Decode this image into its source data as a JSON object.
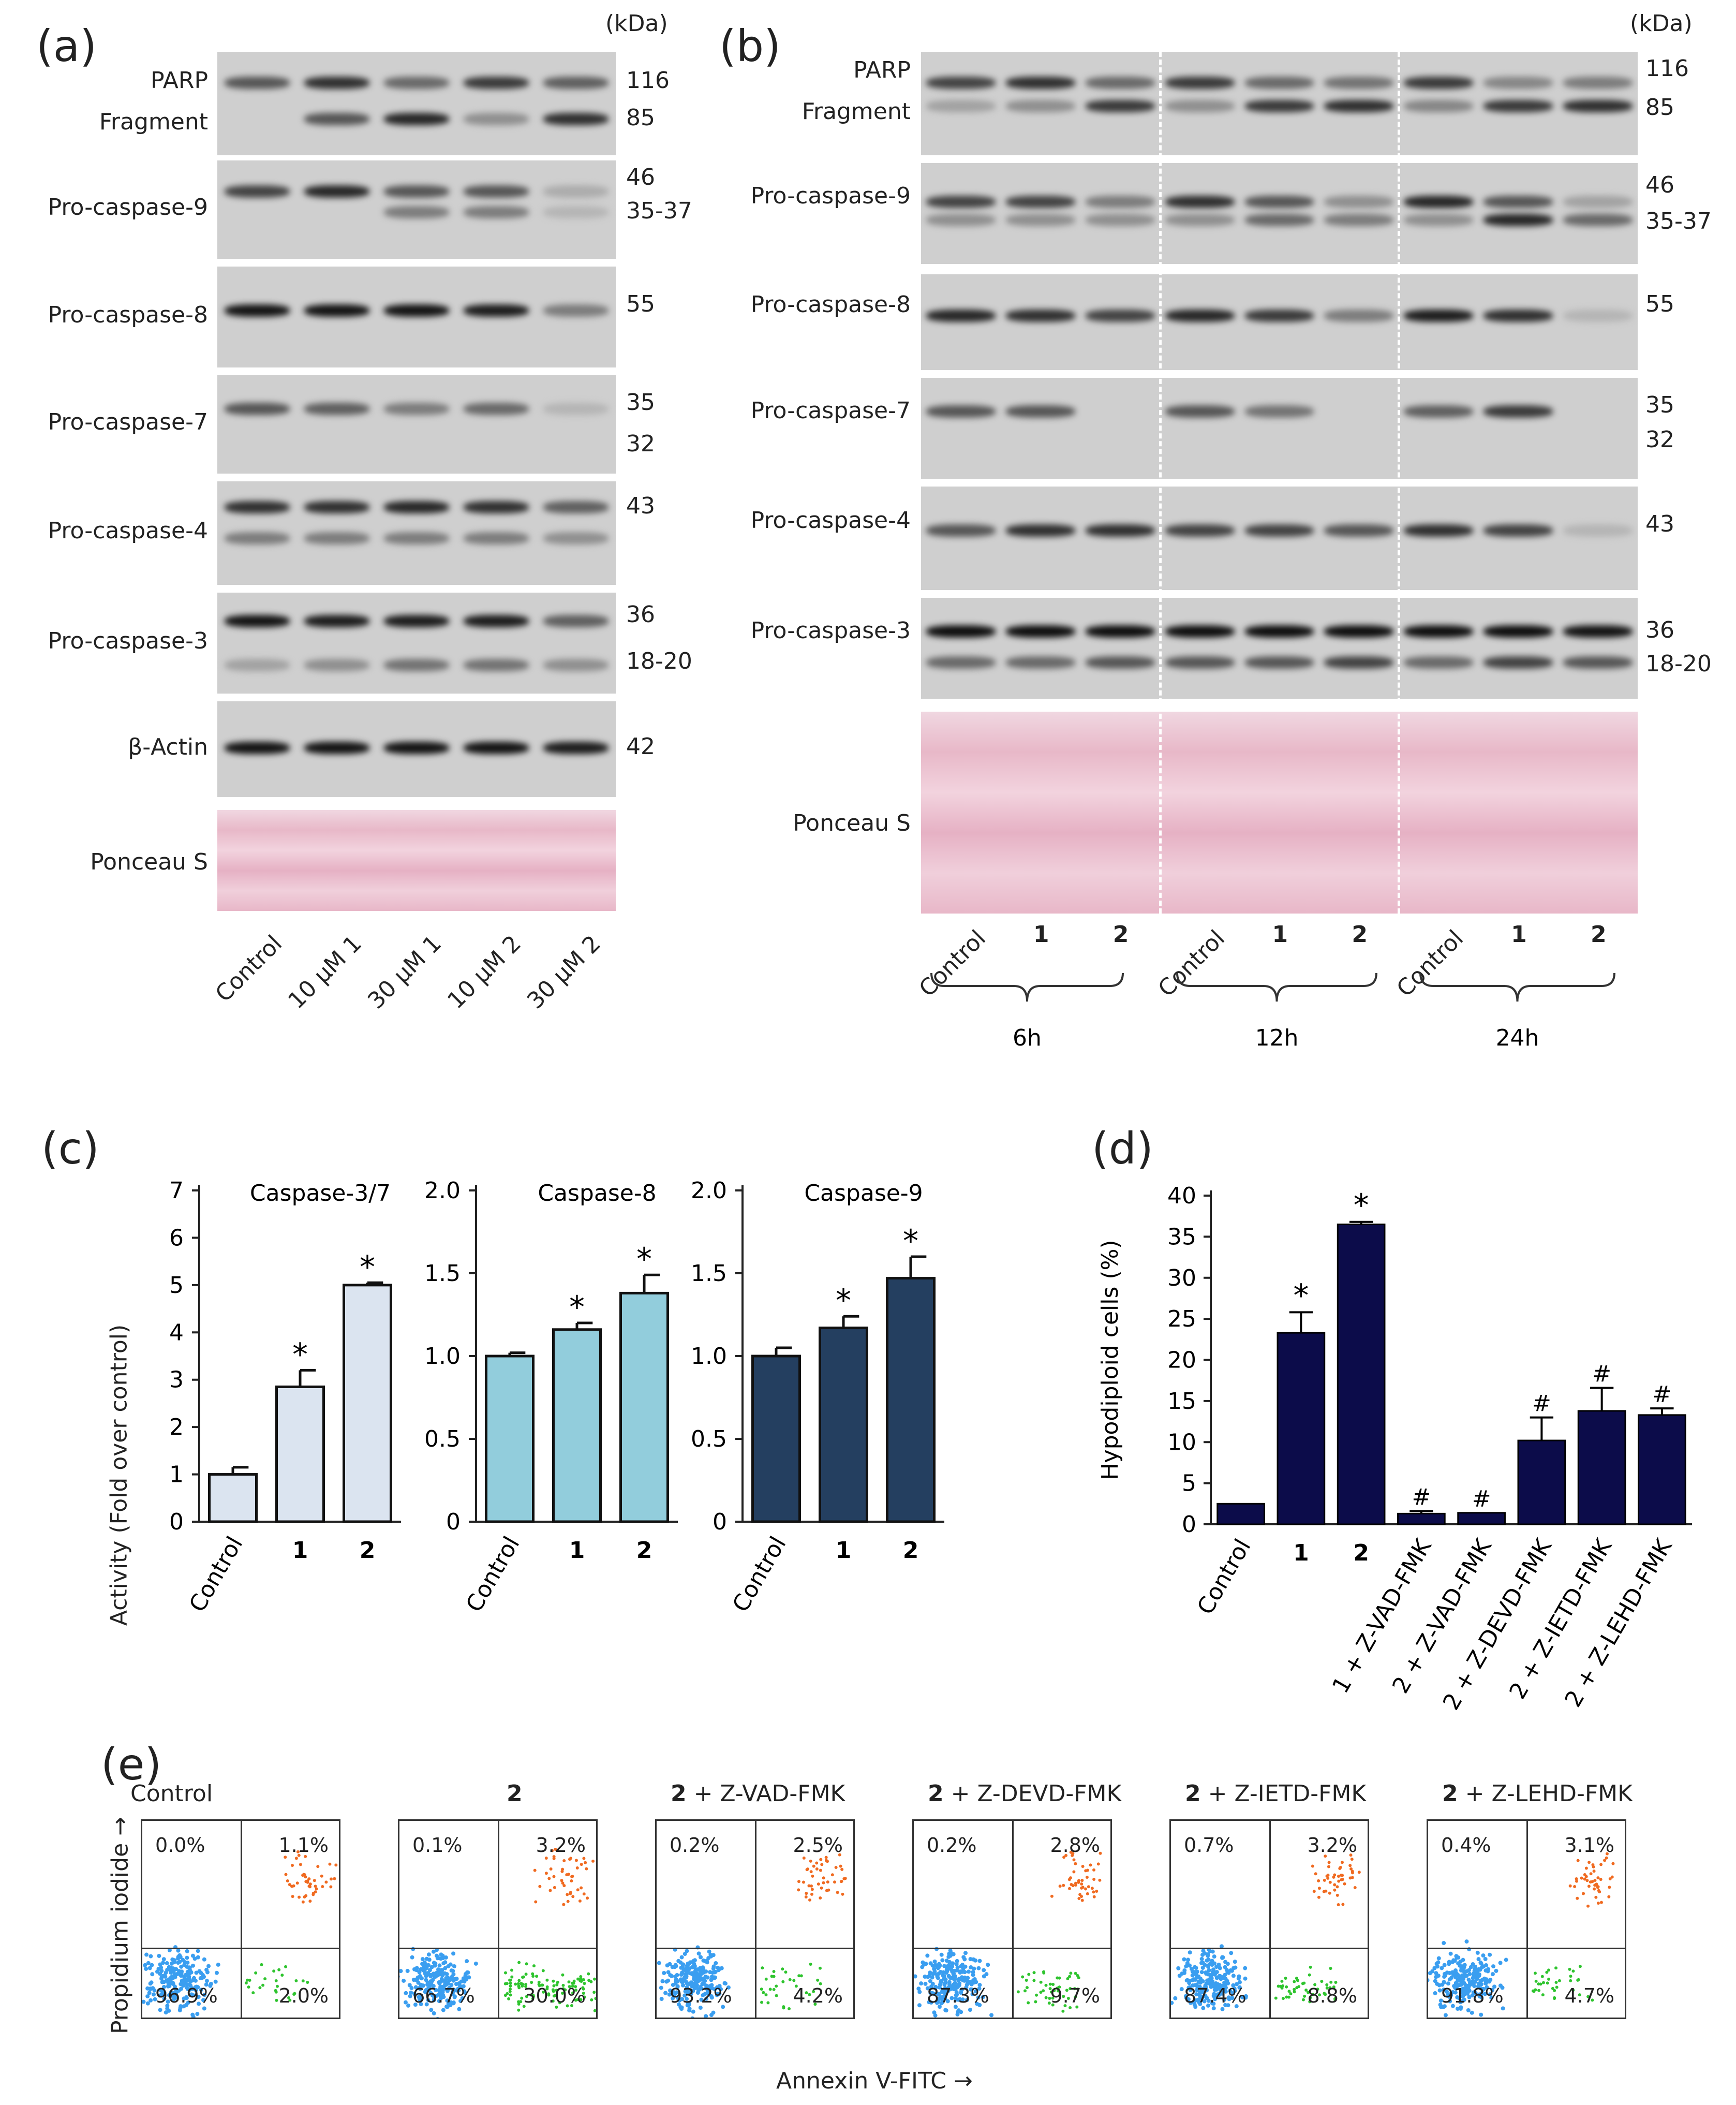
{
  "panel_a": {
    "label": "(a)",
    "kda": "(kDa)",
    "rows": [
      {
        "name": "PARP",
        "mw": "116"
      },
      {
        "name": "Fragment",
        "mw": "85"
      },
      {
        "name": "Pro-caspase-9",
        "mw": "46",
        "mw2": "35-37"
      },
      {
        "name": "Pro-caspase-8",
        "mw": "55"
      },
      {
        "name": "Pro-caspase-7",
        "mw": "35",
        "mw2": "32"
      },
      {
        "name": "Pro-caspase-4",
        "mw": "43"
      },
      {
        "name": "Pro-caspase-3",
        "mw": "36",
        "mw2": "18-20"
      },
      {
        "name": "β-Actin",
        "mw": "42"
      },
      {
        "name": "Ponceau S"
      }
    ],
    "lanes": [
      "Control",
      "10 μM 1",
      "30 μM 1",
      "10 μM 2",
      "30 μM 2"
    ]
  },
  "panel_b": {
    "label": "(b)",
    "kda": "(kDa)",
    "rows": [
      {
        "name": "PARP",
        "mw": "116"
      },
      {
        "name": "Fragment",
        "mw": "85"
      },
      {
        "name": "Pro-caspase-9",
        "mw": "46",
        "mw2": "35-37"
      },
      {
        "name": "Pro-caspase-8",
        "mw": "55"
      },
      {
        "name": "Pro-caspase-7",
        "mw": "35",
        "mw2": "32"
      },
      {
        "name": "Pro-caspase-4",
        "mw": "43"
      },
      {
        "name": "Pro-caspase-3",
        "mw": "36",
        "mw2": "18-20"
      },
      {
        "name": "Ponceau S"
      }
    ],
    "lanes": [
      "Control",
      "1",
      "2",
      "Control",
      "1",
      "2",
      "Control",
      "1",
      "2"
    ],
    "groups": [
      "6h",
      "12h",
      "24h"
    ]
  },
  "panel_c": {
    "label": "(c)",
    "ylabel": "Activity (Fold over control)"
  },
  "panel_d": {
    "label": "(d)"
  },
  "chart_data": [
    {
      "type": "bar",
      "title": "Caspase-3/7",
      "categories": [
        "Control",
        "1",
        "2"
      ],
      "values": [
        1.0,
        2.85,
        5.0
      ],
      "errors": [
        0.15,
        0.35,
        0.05
      ],
      "significance": [
        "",
        "*",
        "*"
      ],
      "ylabel": "Activity (Fold over control)",
      "ylim": [
        0,
        7
      ],
      "yticks": [
        "0",
        "1",
        "2",
        "3",
        "4",
        "5",
        "6",
        "7"
      ],
      "color": "#dbe4f0"
    },
    {
      "type": "bar",
      "title": "Caspase-8",
      "categories": [
        "Control",
        "1",
        "2"
      ],
      "values": [
        1.0,
        1.16,
        1.38
      ],
      "errors": [
        0.02,
        0.04,
        0.11
      ],
      "significance": [
        "",
        "*",
        "*"
      ],
      "ylim": [
        0,
        2.0
      ],
      "yticks": [
        "0",
        "0.5",
        "1.0",
        "1.5",
        "2.0"
      ],
      "color": "#92cddc"
    },
    {
      "type": "bar",
      "title": "Caspase-9",
      "categories": [
        "Control",
        "1",
        "2"
      ],
      "values": [
        1.0,
        1.17,
        1.47
      ],
      "errors": [
        0.05,
        0.07,
        0.13
      ],
      "significance": [
        "",
        "*",
        "*"
      ],
      "ylim": [
        0,
        2.0
      ],
      "yticks": [
        "0",
        "0.5",
        "1.0",
        "1.5",
        "2.0"
      ],
      "color": "#243f60"
    },
    {
      "type": "bar",
      "title": "",
      "categories": [
        "Control",
        "1",
        "2",
        "1 + Z-VAD-FMK",
        "2 + Z-VAD-FMK",
        "2 + Z-DEVD-FMK",
        "2 + Z-IETD-FMK",
        "2 + Z-LEHD-FMK"
      ],
      "values": [
        2.5,
        23.3,
        36.5,
        1.3,
        1.4,
        10.2,
        13.8,
        13.3
      ],
      "errors": [
        0,
        2.5,
        0.3,
        0.3,
        0,
        2.8,
        2.8,
        0.8
      ],
      "significance": [
        "",
        "*",
        "*",
        "#",
        "#",
        "#",
        "#",
        "#"
      ],
      "ylabel": "Hypodiploid cells (%)",
      "ylim": [
        0,
        40
      ],
      "yticks": [
        "0",
        "5",
        "10",
        "15",
        "20",
        "25",
        "30",
        "35",
        "40"
      ],
      "color": "#0c0c4a"
    }
  ],
  "panel_e": {
    "label": "(e)",
    "ylabel": "Propidium iodide →",
    "xlabel": "Annexin V-FITC →",
    "plots": [
      {
        "title_bold": "",
        "title_rest": "Control",
        "ul": "0.0%",
        "ur": "1.1%",
        "ll": "96.9%",
        "lr": "2.0%"
      },
      {
        "title_bold": "2",
        "title_rest": "",
        "ul": "0.1%",
        "ur": "3.2%",
        "ll": "66.7%",
        "lr": "30.0%"
      },
      {
        "title_bold": "2",
        "title_rest": " + Z-VAD-FMK",
        "ul": "0.2%",
        "ur": "2.5%",
        "ll": "93.2%",
        "lr": "4.2%"
      },
      {
        "title_bold": "2",
        "title_rest": " + Z-DEVD-FMK",
        "ul": "0.2%",
        "ur": "2.8%",
        "ll": "87.3%",
        "lr": "9.7%"
      },
      {
        "title_bold": "2",
        "title_rest": " + Z-IETD-FMK",
        "ul": "0.7%",
        "ur": "3.2%",
        "ll": "87.4%",
        "lr": "8.8%"
      },
      {
        "title_bold": "2",
        "title_rest": " + Z-LEHD-FMK",
        "ul": "0.4%",
        "ur": "3.1%",
        "ll": "91.8%",
        "lr": "4.7%"
      }
    ]
  }
}
